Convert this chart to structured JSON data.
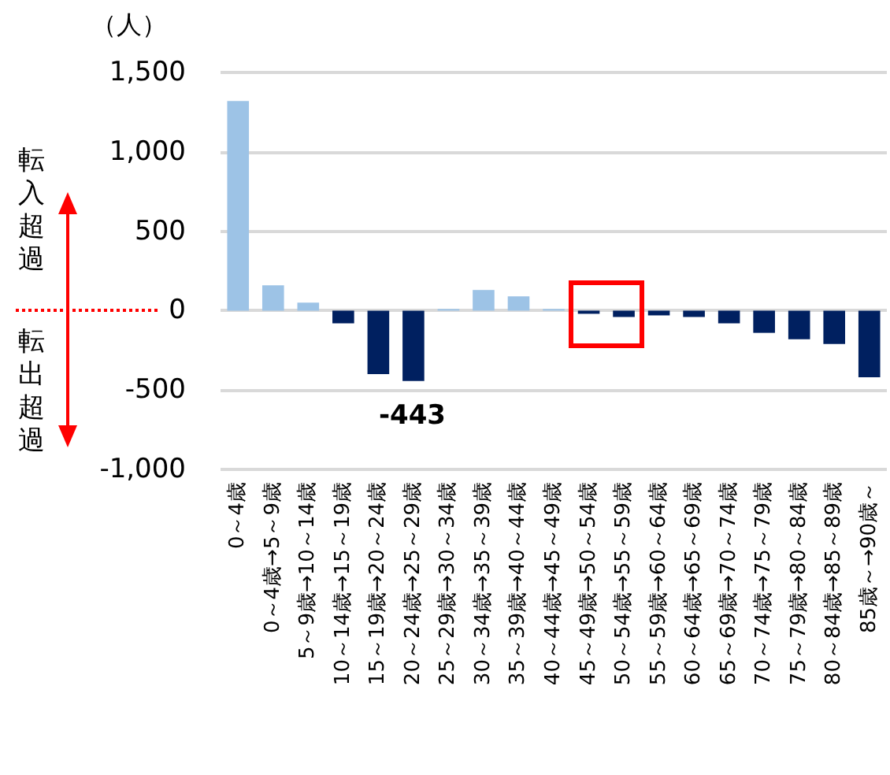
{
  "chart_data": {
    "type": "bar",
    "ylabel": "（人）",
    "categories": [
      "0～4歳",
      "0～4歳→5～9歳",
      "5～9歳→10～14歳",
      "10～14歳→15～19歳",
      "15～19歳→20～24歳",
      "20～24歳→25～29歳",
      "25～29歳→30～34歳",
      "30～34歳→35～39歳",
      "35～39歳→40～44歳",
      "40～44歳→45～49歳",
      "45～49歳→50～54歳",
      "50～54歳→55～59歳",
      "55～59歳→60～64歳",
      "60～64歳→65～69歳",
      "65～69歳→70～74歳",
      "70～74歳→75～79歳",
      "75～79歳→80～84歳",
      "80～84歳→85～89歳",
      "85歳～→90歳～"
    ],
    "values": [
      1320,
      160,
      50,
      -80,
      -400,
      -443,
      10,
      130,
      90,
      10,
      -20,
      -40,
      -30,
      -40,
      -80,
      -140,
      -180,
      -210,
      -420
    ],
    "colors": [
      "#9dc3e6",
      "#9dc3e6",
      "#9dc3e6",
      "#002060",
      "#002060",
      "#002060",
      "#9dc3e6",
      "#9dc3e6",
      "#9dc3e6",
      "#9dc3e6",
      "#002060",
      "#002060",
      "#002060",
      "#002060",
      "#002060",
      "#002060",
      "#002060",
      "#002060",
      "#002060"
    ],
    "ylim": [
      -1000,
      1500
    ],
    "yticks": [
      {
        "value": -1000,
        "label": "-1,000"
      },
      -500,
      0,
      500,
      {
        "value": 1000,
        "label": "1,000"
      },
      {
        "value": 1500,
        "label": "1,500"
      }
    ],
    "grid": "y",
    "annotations": [
      "転入超過",
      "転出超過",
      {
        "text": "-443",
        "x": "20～24歳→25～29歳",
        "y": -443
      }
    ]
  }
}
